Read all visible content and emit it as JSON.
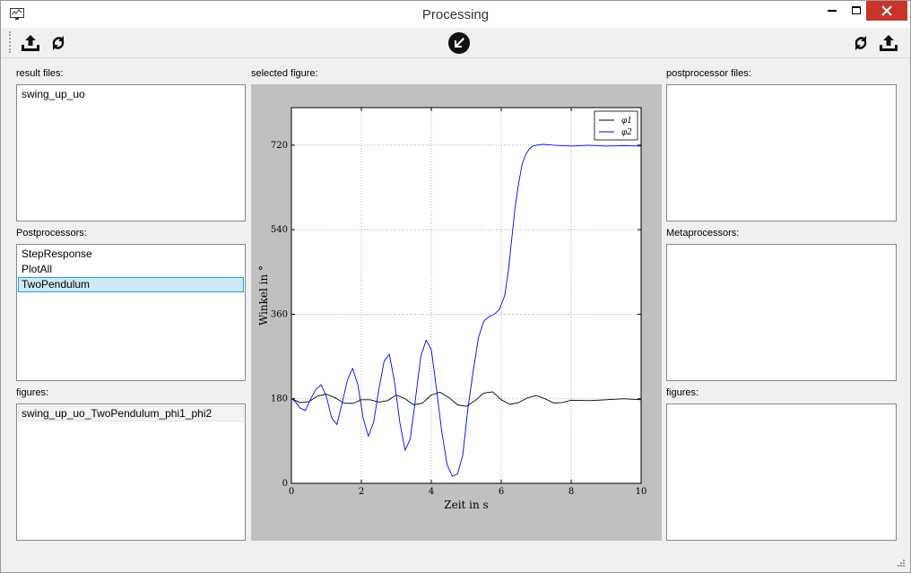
{
  "window": {
    "title": "Processing"
  },
  "toolbar": {
    "left_buttons": [
      "upload-icon",
      "refresh-icon"
    ],
    "center_button": "arrow-down-left-icon",
    "right_buttons": [
      "refresh-icon",
      "upload-icon"
    ]
  },
  "left": {
    "result_files_label": "result files:",
    "result_files": [
      "swing_up_uo"
    ],
    "postprocessors_label": "Postprocessors:",
    "postprocessors": [
      "StepResponse",
      "PlotAll",
      "TwoPendulum"
    ],
    "postprocessors_selected": 2,
    "figures_label": "figures:",
    "figures": [
      "swing_up_uo_TwoPendulum_phi1_phi2"
    ]
  },
  "center": {
    "selected_figure_label": "selected figure:"
  },
  "right": {
    "postprocessor_files_label": "postprocessor files:",
    "metaprocessors_label": "Metaprocessors:",
    "figures_label": "figures:"
  },
  "chart_data": {
    "type": "line",
    "title": "",
    "xlabel": "Zeit in s",
    "ylabel": "Winkel in °",
    "xlim": [
      0,
      10
    ],
    "ylim": [
      0,
      800
    ],
    "xticks": [
      0,
      2,
      4,
      6,
      8,
      10
    ],
    "yticks": [
      0,
      180,
      360,
      540,
      720
    ],
    "grid": true,
    "legend": "top-right",
    "series": [
      {
        "name": "φ1",
        "color": "#000000",
        "x": [
          0,
          0.25,
          0.5,
          0.75,
          1.0,
          1.25,
          1.5,
          1.75,
          2.0,
          2.25,
          2.5,
          2.75,
          3.0,
          3.25,
          3.5,
          3.75,
          4.0,
          4.25,
          4.5,
          4.75,
          5.0,
          5.25,
          5.5,
          5.75,
          6.0,
          6.25,
          6.5,
          6.75,
          7.0,
          7.25,
          7.5,
          7.75,
          8.0,
          8.5,
          9.0,
          9.5,
          10.0
        ],
        "values": [
          180,
          172,
          174,
          186,
          190,
          182,
          171,
          170,
          178,
          178,
          173,
          176,
          188,
          180,
          167,
          171,
          188,
          194,
          183,
          167,
          164,
          176,
          192,
          195,
          178,
          168,
          172,
          182,
          187,
          180,
          171,
          172,
          177,
          176,
          178,
          180,
          178
        ]
      },
      {
        "name": "φ2",
        "color": "#0000ff",
        "x": [
          0,
          0.1,
          0.25,
          0.4,
          0.55,
          0.7,
          0.85,
          1.0,
          1.15,
          1.3,
          1.45,
          1.6,
          1.75,
          1.9,
          2.05,
          2.2,
          2.35,
          2.5,
          2.65,
          2.8,
          2.95,
          3.1,
          3.25,
          3.4,
          3.55,
          3.7,
          3.85,
          4.0,
          4.15,
          4.3,
          4.45,
          4.6,
          4.75,
          4.9,
          5.05,
          5.2,
          5.35,
          5.5,
          5.65,
          5.8,
          5.95,
          6.1,
          6.2,
          6.3,
          6.4,
          6.5,
          6.6,
          6.7,
          6.8,
          6.9,
          7.0,
          7.2,
          7.5,
          8.0,
          8.5,
          9.0,
          9.5,
          10.0
        ],
        "values": [
          180,
          175,
          160,
          155,
          180,
          200,
          210,
          185,
          140,
          125,
          170,
          220,
          245,
          210,
          140,
          100,
          130,
          200,
          260,
          275,
          215,
          130,
          70,
          95,
          180,
          270,
          305,
          285,
          200,
          110,
          40,
          15,
          20,
          60,
          160,
          240,
          310,
          345,
          355,
          360,
          370,
          400,
          450,
          520,
          590,
          640,
          680,
          700,
          712,
          718,
          720,
          722,
          720,
          718,
          720,
          718,
          719,
          718
        ]
      }
    ]
  }
}
